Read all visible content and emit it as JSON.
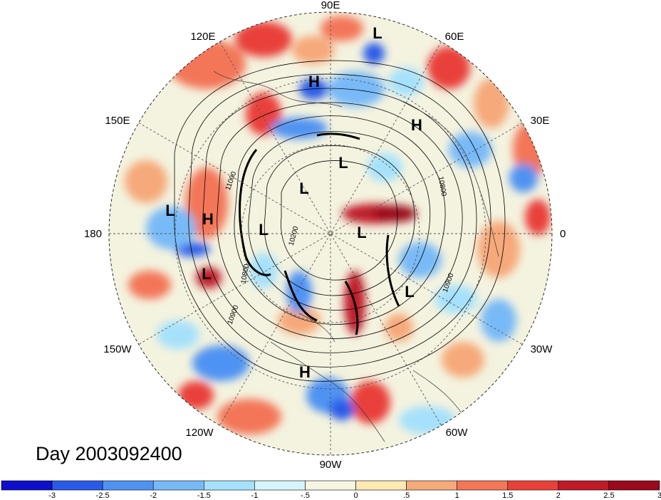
{
  "title": "Day 2003092400",
  "longitude_labels": {
    "e90": "90E",
    "e60": "60E",
    "e30": "30E",
    "lon0": "0",
    "w30": "30W",
    "w60": "60W",
    "w90": "90W",
    "w120": "120W",
    "w150": "150W",
    "lon180": "180",
    "e150": "150E",
    "e120": "120E"
  },
  "pressure_centers": {
    "h_siberia": "H",
    "h_europe": "H",
    "h_pacific": "H",
    "h_north_america": "H",
    "l_top": "L",
    "l_arctic": "L",
    "l_east_siberia": "L",
    "l_west_pacific": "L",
    "l_bering": "L",
    "l_greenland": "L",
    "l_gulf_alaska": "L",
    "l_north_atlantic": "L"
  },
  "contour_labels": {
    "c_left": "11000",
    "c_mid": "10200",
    "c_lower_left": "10800",
    "c_bottom_left": "10900",
    "c_right": "10900",
    "c_upper_right": "10800"
  },
  "colorbar": {
    "colors": [
      "#0e0ecb",
      "#2a5be8",
      "#4f93f2",
      "#78baf7",
      "#a6e1fb",
      "#d6f5fb",
      "#f5f5e2",
      "#fde9b2",
      "#f6a97a",
      "#f37658",
      "#e9403a",
      "#c01a29",
      "#9a0a1c"
    ],
    "tick_labels": [
      "-3",
      "-2.5",
      "-2",
      "-1.5",
      "-1",
      "-.5",
      "0",
      ".5",
      "1",
      "1.5",
      "2",
      "2.5",
      "3"
    ]
  }
}
